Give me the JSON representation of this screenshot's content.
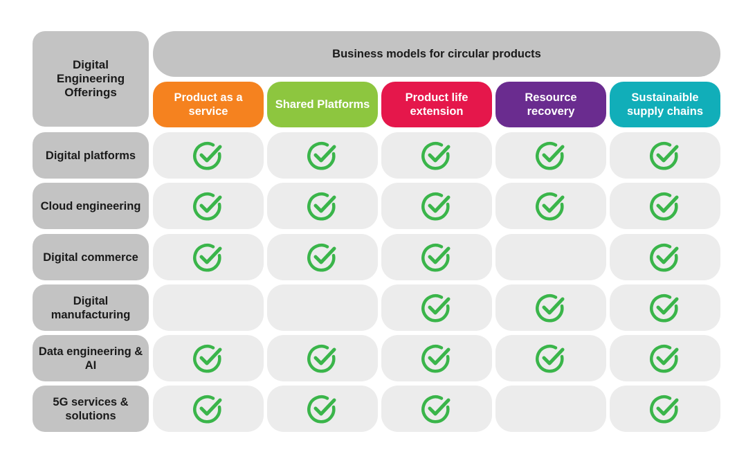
{
  "corner_label": "Digital Engineering Offerings",
  "banner_label": "Business models for circular products",
  "models": [
    {
      "label": "Product as a service",
      "color": "#f5821f"
    },
    {
      "label": "Shared Platforms",
      "color": "#8dc63f"
    },
    {
      "label": "Product life extension",
      "color": "#e5174b"
    },
    {
      "label": "Resource recovery",
      "color": "#6a2c8f"
    },
    {
      "label": "Sustainaible supply chains",
      "color": "#11aeb9"
    }
  ],
  "offerings": [
    {
      "label": "Digital platforms",
      "checks": [
        true,
        true,
        true,
        true,
        true
      ]
    },
    {
      "label": "Cloud engineering",
      "checks": [
        true,
        true,
        true,
        true,
        true
      ]
    },
    {
      "label": "Digital commerce",
      "checks": [
        true,
        true,
        true,
        false,
        true
      ]
    },
    {
      "label": "Digital manufacturing",
      "checks": [
        false,
        false,
        true,
        true,
        true
      ]
    },
    {
      "label": "Data engineering & AI",
      "checks": [
        true,
        true,
        true,
        true,
        true
      ]
    },
    {
      "label": "5G services & solutions",
      "checks": [
        true,
        true,
        true,
        false,
        true
      ]
    }
  ],
  "check_color": "#3ab54a"
}
